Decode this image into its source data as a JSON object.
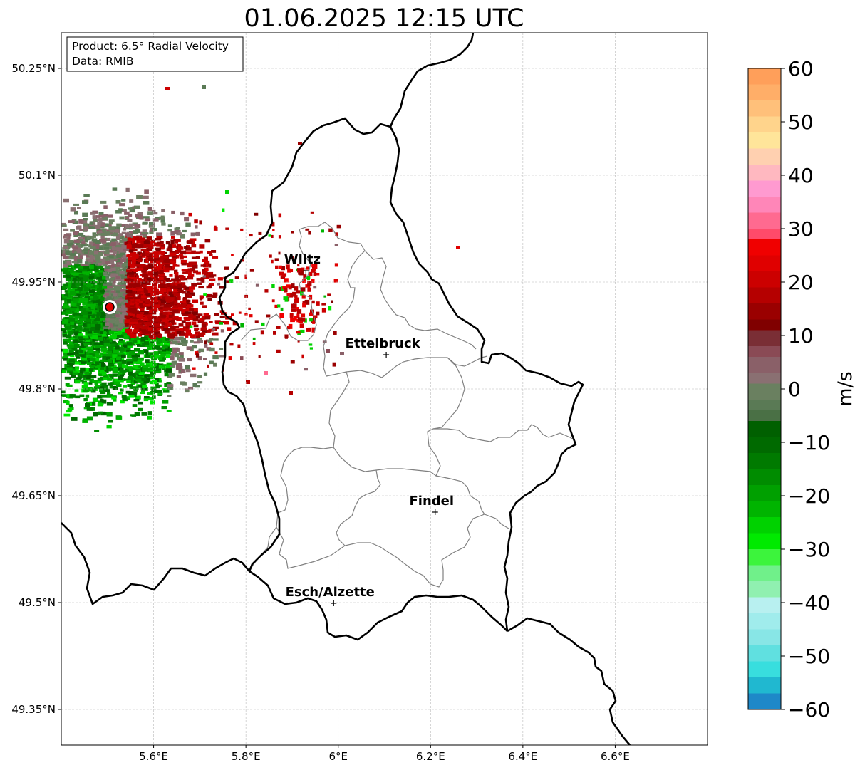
{
  "title": "01.06.2025 12:15 UTC",
  "info_box": {
    "product": "Product: 6.5° Radial Velocity",
    "data": "Data: RMIB"
  },
  "axes": {
    "lat_ticks": [
      {
        "lat": 50.25,
        "label": "50.25°N"
      },
      {
        "lat": 50.1,
        "label": "50.1°N"
      },
      {
        "lat": 49.95,
        "label": "49.95°N"
      },
      {
        "lat": 49.8,
        "label": "49.8°N"
      },
      {
        "lat": 49.65,
        "label": "49.65°N"
      },
      {
        "lat": 49.5,
        "label": "49.5°N"
      },
      {
        "lat": 49.35,
        "label": "49.35°N"
      }
    ],
    "lon_ticks": [
      {
        "lon": 5.6,
        "label": "5.6°E"
      },
      {
        "lon": 5.8,
        "label": "5.8°E"
      },
      {
        "lon": 6.0,
        "label": "6°E"
      },
      {
        "lon": 6.2,
        "label": "6.2°E"
      },
      {
        "lon": 6.4,
        "label": "6.4°E"
      },
      {
        "lon": 6.6,
        "label": "6.6°E"
      }
    ],
    "lon_range": [
      5.4,
      6.8
    ],
    "lat_range": [
      49.3,
      50.3
    ],
    "grid": true
  },
  "cities": [
    {
      "name": "Wiltz",
      "lon": 5.93,
      "lat": 49.966
    },
    {
      "name": "Ettelbruck",
      "lon": 6.104,
      "lat": 49.848
    },
    {
      "name": "Findel",
      "lon": 6.21,
      "lat": 49.627
    },
    {
      "name": "Esch/Alzette",
      "lon": 5.99,
      "lat": 49.499
    }
  ],
  "radar": {
    "lon": 5.505,
    "lat": 49.915
  },
  "colorbar": {
    "label": "m/s",
    "min": -60,
    "max": 60,
    "tick_values": [
      60,
      50,
      40,
      30,
      20,
      10,
      0,
      -10,
      -20,
      -30,
      -40,
      -50,
      -60
    ],
    "tick_labels": [
      "60",
      "50",
      "40",
      "30",
      "20",
      "10",
      "0",
      "−10",
      "−20",
      "−30",
      "−40",
      "−50",
      "−60"
    ],
    "bands_top_to_bottom": [
      {
        "from": 60,
        "to": 57,
        "color": "#ff9f5a"
      },
      {
        "from": 57,
        "to": 54,
        "color": "#ffae68"
      },
      {
        "from": 54,
        "to": 51,
        "color": "#ffc07a"
      },
      {
        "from": 51,
        "to": 48,
        "color": "#ffd48c"
      },
      {
        "from": 48,
        "to": 45,
        "color": "#ffe59a"
      },
      {
        "from": 45,
        "to": 42,
        "color": "#ffd0b0"
      },
      {
        "from": 42,
        "to": 39,
        "color": "#ffb8c0"
      },
      {
        "from": 39,
        "to": 36,
        "color": "#ff9ad0"
      },
      {
        "from": 36,
        "to": 33,
        "color": "#ff86b8"
      },
      {
        "from": 33,
        "to": 30,
        "color": "#ff6a90"
      },
      {
        "from": 30,
        "to": 28,
        "color": "#ff4a6a"
      },
      {
        "from": 28,
        "to": 25,
        "color": "#f00000"
      },
      {
        "from": 25,
        "to": 22,
        "color": "#e00000"
      },
      {
        "from": 22,
        "to": 19,
        "color": "#cc0000"
      },
      {
        "from": 19,
        "to": 16,
        "color": "#b50000"
      },
      {
        "from": 16,
        "to": 13,
        "color": "#9a0000"
      },
      {
        "from": 13,
        "to": 11,
        "color": "#800000"
      },
      {
        "from": 11,
        "to": 8,
        "color": "#7a2e35"
      },
      {
        "from": 8,
        "to": 6,
        "color": "#8a4a55"
      },
      {
        "from": 6,
        "to": 3,
        "color": "#8a6068"
      },
      {
        "from": 3,
        "to": 1,
        "color": "#8a7072"
      },
      {
        "from": 1,
        "to": -2,
        "color": "#6a8060"
      },
      {
        "from": -2,
        "to": -4,
        "color": "#5a7a55"
      },
      {
        "from": -4,
        "to": -6,
        "color": "#4a7045"
      },
      {
        "from": -6,
        "to": -9,
        "color": "#006000"
      },
      {
        "from": -9,
        "to": -12,
        "color": "#006a00"
      },
      {
        "from": -12,
        "to": -15,
        "color": "#007a00"
      },
      {
        "from": -15,
        "to": -18,
        "color": "#008c00"
      },
      {
        "from": -18,
        "to": -21,
        "color": "#00a000"
      },
      {
        "from": -21,
        "to": -24,
        "color": "#00b400"
      },
      {
        "from": -24,
        "to": -27,
        "color": "#00d200"
      },
      {
        "from": -27,
        "to": -30,
        "color": "#00ea00"
      },
      {
        "from": -30,
        "to": -33,
        "color": "#3cf43c"
      },
      {
        "from": -33,
        "to": -36,
        "color": "#70f08a"
      },
      {
        "from": -36,
        "to": -39,
        "color": "#90f0b0"
      },
      {
        "from": -39,
        "to": -42,
        "color": "#b8f0f0"
      },
      {
        "from": -42,
        "to": -45,
        "color": "#a0ecec"
      },
      {
        "from": -45,
        "to": -48,
        "color": "#88e6e6"
      },
      {
        "from": -48,
        "to": -51,
        "color": "#60e0e0"
      },
      {
        "from": -51,
        "to": -54,
        "color": "#38dede"
      },
      {
        "from": -54,
        "to": -57,
        "color": "#20b8d0"
      },
      {
        "from": -57,
        "to": -60,
        "color": "#1e88c8"
      }
    ]
  },
  "colors": {
    "country_border": "#000000",
    "canton_border": "#808080",
    "grid": "#b8b8b8",
    "radar_site": "#e00000"
  }
}
